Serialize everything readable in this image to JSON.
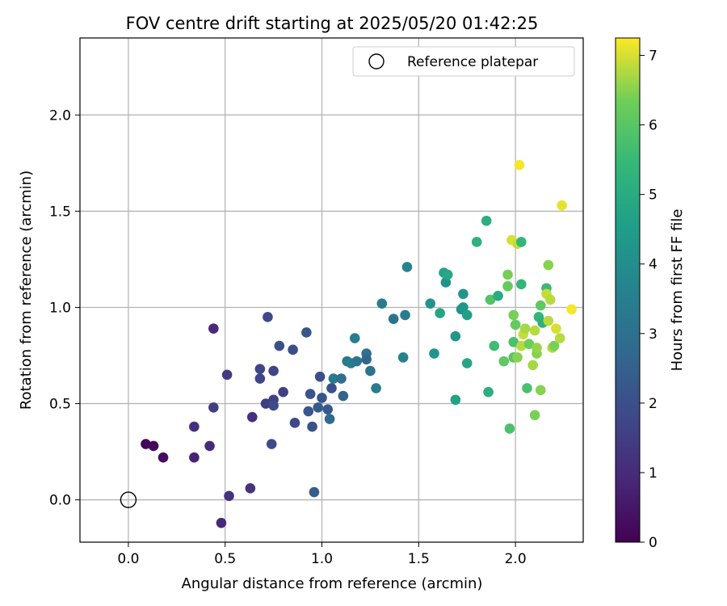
{
  "chart_data": {
    "type": "scatter",
    "title": "FOV centre drift starting at 2025/05/20 01:42:25",
    "xlabel": "Angular distance from reference (arcmin)",
    "ylabel": "Rotation from reference (arcmin)",
    "xlim": [
      -0.25,
      2.35
    ],
    "ylim": [
      -0.22,
      2.4
    ],
    "xticks": [
      0.0,
      0.5,
      1.0,
      1.5,
      2.0
    ],
    "yticks": [
      0.0,
      0.5,
      1.0,
      1.5,
      2.0
    ],
    "grid": true,
    "legend": {
      "placement": "top-right",
      "entries": [
        "Reference platepar"
      ]
    },
    "reference_point": {
      "x": 0.0,
      "y": 0.0,
      "label": "Reference platepar"
    },
    "colorbar": {
      "label": "Hours from first FF file",
      "min": 0,
      "max": 7.25,
      "ticks": [
        0,
        1,
        2,
        3,
        4,
        5,
        6,
        7
      ],
      "colormap": "viridis"
    },
    "series": [
      {
        "points": [
          {
            "x": 0.09,
            "y": 0.29,
            "h": 0.1
          },
          {
            "x": 0.13,
            "y": 0.28,
            "h": 0.2
          },
          {
            "x": 0.18,
            "y": 0.22,
            "h": 0.3
          },
          {
            "x": 0.34,
            "y": 0.22,
            "h": 0.8
          },
          {
            "x": 0.34,
            "y": 0.38,
            "h": 1.1
          },
          {
            "x": 0.42,
            "y": 0.28,
            "h": 1.0
          },
          {
            "x": 0.44,
            "y": 0.48,
            "h": 1.5
          },
          {
            "x": 0.44,
            "y": 0.89,
            "h": 1.0
          },
          {
            "x": 0.48,
            "y": -0.12,
            "h": 0.9
          },
          {
            "x": 0.51,
            "y": 0.65,
            "h": 1.4
          },
          {
            "x": 0.52,
            "y": 0.02,
            "h": 1.2
          },
          {
            "x": 0.63,
            "y": 0.06,
            "h": 1.2
          },
          {
            "x": 0.64,
            "y": 0.43,
            "h": 1.1
          },
          {
            "x": 0.68,
            "y": 0.68,
            "h": 1.7
          },
          {
            "x": 0.68,
            "y": 0.63,
            "h": 1.7
          },
          {
            "x": 0.71,
            "y": 0.5,
            "h": 1.5
          },
          {
            "x": 0.72,
            "y": 0.95,
            "h": 1.8
          },
          {
            "x": 0.74,
            "y": 0.29,
            "h": 1.9
          },
          {
            "x": 0.75,
            "y": 0.67,
            "h": 1.7
          },
          {
            "x": 0.75,
            "y": 0.52,
            "h": 1.6
          },
          {
            "x": 0.75,
            "y": 0.49,
            "h": 1.9
          },
          {
            "x": 0.78,
            "y": 0.8,
            "h": 2.0
          },
          {
            "x": 0.8,
            "y": 0.56,
            "h": 1.6
          },
          {
            "x": 0.85,
            "y": 0.78,
            "h": 2.0
          },
          {
            "x": 0.86,
            "y": 0.4,
            "h": 1.8
          },
          {
            "x": 0.92,
            "y": 0.87,
            "h": 2.2
          },
          {
            "x": 0.93,
            "y": 0.46,
            "h": 2.2
          },
          {
            "x": 0.94,
            "y": 0.55,
            "h": 2.1
          },
          {
            "x": 0.95,
            "y": 0.38,
            "h": 2.0
          },
          {
            "x": 0.96,
            "y": 0.04,
            "h": 2.4
          },
          {
            "x": 0.98,
            "y": 0.48,
            "h": 2.3
          },
          {
            "x": 0.99,
            "y": 0.64,
            "h": 2.0
          },
          {
            "x": 1.0,
            "y": 0.53,
            "h": 2.2
          },
          {
            "x": 1.03,
            "y": 0.47,
            "h": 2.3
          },
          {
            "x": 1.04,
            "y": 0.42,
            "h": 2.8
          },
          {
            "x": 1.05,
            "y": 0.58,
            "h": 2.0
          },
          {
            "x": 1.06,
            "y": 0.63,
            "h": 3.3
          },
          {
            "x": 1.1,
            "y": 0.63,
            "h": 3.0
          },
          {
            "x": 1.11,
            "y": 0.54,
            "h": 2.6
          },
          {
            "x": 1.13,
            "y": 0.72,
            "h": 3.3
          },
          {
            "x": 1.15,
            "y": 0.71,
            "h": 3.4
          },
          {
            "x": 1.17,
            "y": 0.84,
            "h": 3.5
          },
          {
            "x": 1.18,
            "y": 0.72,
            "h": 3.2
          },
          {
            "x": 1.23,
            "y": 0.76,
            "h": 3.0
          },
          {
            "x": 1.23,
            "y": 0.73,
            "h": 2.7
          },
          {
            "x": 1.25,
            "y": 0.67,
            "h": 3.1
          },
          {
            "x": 1.28,
            "y": 0.58,
            "h": 3.4
          },
          {
            "x": 1.31,
            "y": 1.02,
            "h": 3.4
          },
          {
            "x": 1.37,
            "y": 0.94,
            "h": 3.1
          },
          {
            "x": 1.42,
            "y": 0.74,
            "h": 3.6
          },
          {
            "x": 1.43,
            "y": 0.96,
            "h": 3.5
          },
          {
            "x": 1.44,
            "y": 1.21,
            "h": 3.7
          },
          {
            "x": 1.56,
            "y": 1.02,
            "h": 4.2
          },
          {
            "x": 1.58,
            "y": 0.76,
            "h": 4.2
          },
          {
            "x": 1.61,
            "y": 0.97,
            "h": 4.8
          },
          {
            "x": 1.63,
            "y": 1.18,
            "h": 4.7
          },
          {
            "x": 1.64,
            "y": 1.13,
            "h": 4.1
          },
          {
            "x": 1.65,
            "y": 1.17,
            "h": 4.9
          },
          {
            "x": 1.69,
            "y": 0.52,
            "h": 4.7
          },
          {
            "x": 1.69,
            "y": 0.85,
            "h": 4.3
          },
          {
            "x": 1.72,
            "y": 0.99,
            "h": 4.1
          },
          {
            "x": 1.73,
            "y": 1.07,
            "h": 4.2
          },
          {
            "x": 1.73,
            "y": 1.0,
            "h": 4.3
          },
          {
            "x": 1.75,
            "y": 0.96,
            "h": 4.6
          },
          {
            "x": 1.75,
            "y": 0.71,
            "h": 4.8
          },
          {
            "x": 1.8,
            "y": 1.34,
            "h": 5.2
          },
          {
            "x": 1.85,
            "y": 1.45,
            "h": 5.1
          },
          {
            "x": 1.86,
            "y": 0.56,
            "h": 5.1
          },
          {
            "x": 1.87,
            "y": 1.04,
            "h": 5.9
          },
          {
            "x": 1.89,
            "y": 0.8,
            "h": 5.6
          },
          {
            "x": 1.91,
            "y": 1.06,
            "h": 5.0
          },
          {
            "x": 1.94,
            "y": 0.72,
            "h": 6.1
          },
          {
            "x": 1.96,
            "y": 1.17,
            "h": 6.4
          },
          {
            "x": 1.96,
            "y": 1.11,
            "h": 6.2
          },
          {
            "x": 1.97,
            "y": 0.37,
            "h": 5.8
          },
          {
            "x": 1.98,
            "y": 1.35,
            "h": 7.0
          },
          {
            "x": 1.99,
            "y": 0.96,
            "h": 6.4
          },
          {
            "x": 1.99,
            "y": 0.82,
            "h": 5.8
          },
          {
            "x": 1.99,
            "y": 0.74,
            "h": 6.0
          },
          {
            "x": 2.0,
            "y": 0.91,
            "h": 6.2
          },
          {
            "x": 2.01,
            "y": 1.33,
            "h": 6.9
          },
          {
            "x": 2.01,
            "y": 0.74,
            "h": 6.5
          },
          {
            "x": 2.02,
            "y": 1.74,
            "h": 7.2
          },
          {
            "x": 2.03,
            "y": 1.34,
            "h": 5.4
          },
          {
            "x": 2.03,
            "y": 1.12,
            "h": 5.4
          },
          {
            "x": 2.03,
            "y": 0.8,
            "h": 6.8
          },
          {
            "x": 2.04,
            "y": 0.86,
            "h": 6.9
          },
          {
            "x": 2.05,
            "y": 0.89,
            "h": 6.7
          },
          {
            "x": 2.06,
            "y": 0.58,
            "h": 5.8
          },
          {
            "x": 2.07,
            "y": 0.81,
            "h": 6.3
          },
          {
            "x": 2.09,
            "y": 0.7,
            "h": 6.7
          },
          {
            "x": 2.1,
            "y": 0.44,
            "h": 6.4
          },
          {
            "x": 2.1,
            "y": 0.88,
            "h": 6.8
          },
          {
            "x": 2.11,
            "y": 0.76,
            "h": 6.5
          },
          {
            "x": 2.11,
            "y": 0.79,
            "h": 6.6
          },
          {
            "x": 2.12,
            "y": 0.95,
            "h": 5.4
          },
          {
            "x": 2.13,
            "y": 0.57,
            "h": 6.5
          },
          {
            "x": 2.13,
            "y": 1.01,
            "h": 6.1
          },
          {
            "x": 2.14,
            "y": 0.92,
            "h": 5.2
          },
          {
            "x": 2.16,
            "y": 1.1,
            "h": 5.5
          },
          {
            "x": 2.16,
            "y": 1.07,
            "h": 6.9
          },
          {
            "x": 2.17,
            "y": 1.22,
            "h": 6.5
          },
          {
            "x": 2.17,
            "y": 0.93,
            "h": 6.8
          },
          {
            "x": 2.18,
            "y": 1.04,
            "h": 6.8
          },
          {
            "x": 2.19,
            "y": 0.79,
            "h": 6.8
          },
          {
            "x": 2.2,
            "y": 0.8,
            "h": 6.4
          },
          {
            "x": 2.21,
            "y": 0.89,
            "h": 7.0
          },
          {
            "x": 2.23,
            "y": 0.84,
            "h": 6.8
          },
          {
            "x": 2.24,
            "y": 1.53,
            "h": 7.1
          },
          {
            "x": 2.29,
            "y": 0.99,
            "h": 7.2
          }
        ]
      }
    ]
  }
}
